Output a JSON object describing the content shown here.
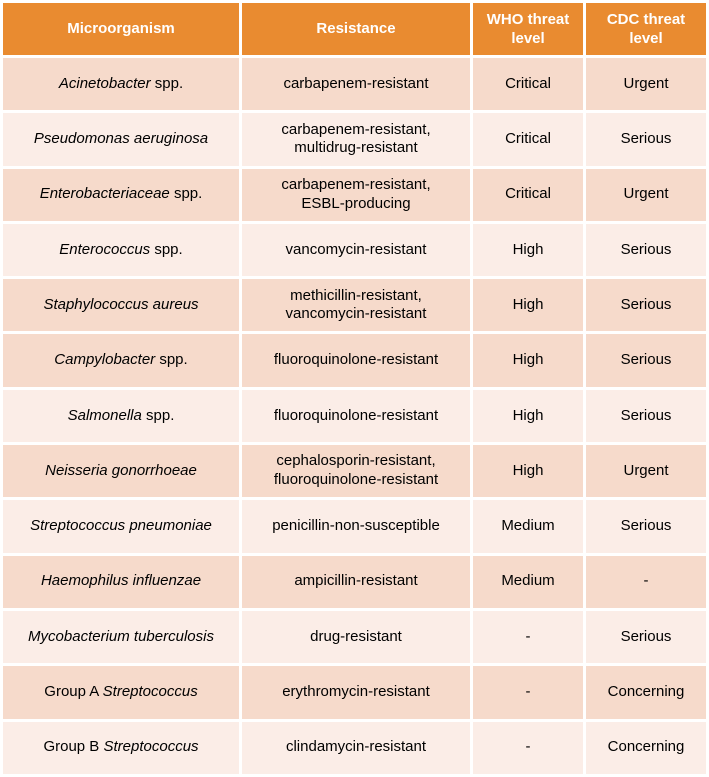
{
  "colors": {
    "header_bg": "#E98B30",
    "header_text": "#FFFFFF",
    "row_band_dark": "#F6DACB",
    "row_band_light": "#FBEDE7",
    "body_text": "#000000",
    "grid_white": "#FFFFFF"
  },
  "table": {
    "columns": [
      "Microorganism",
      "Resistance",
      "WHO threat level",
      "CDC threat level"
    ],
    "rows": [
      {
        "microorganism": [
          {
            "text": "Acinetobacter",
            "italic": true
          },
          {
            "text": " spp.",
            "italic": false
          }
        ],
        "resistance": "carbapenem-resistant",
        "who": "Critical",
        "cdc": "Urgent",
        "band": "dark"
      },
      {
        "microorganism": [
          {
            "text": "Pseudomonas aeruginosa",
            "italic": true
          }
        ],
        "resistance": "carbapenem-resistant,\nmultidrug-resistant",
        "who": "Critical",
        "cdc": "Serious",
        "band": "light"
      },
      {
        "microorganism": [
          {
            "text": "Enterobacteriaceae",
            "italic": true
          },
          {
            "text": " spp.",
            "italic": false
          }
        ],
        "resistance": "carbapenem-resistant,\nESBL-producing",
        "who": "Critical",
        "cdc": "Urgent",
        "band": "dark"
      },
      {
        "microorganism": [
          {
            "text": "Enterococcus",
            "italic": true
          },
          {
            "text": " spp.",
            "italic": false
          }
        ],
        "resistance": "vancomycin-resistant",
        "who": "High",
        "cdc": "Serious",
        "band": "light"
      },
      {
        "microorganism": [
          {
            "text": "Staphylococcus aureus",
            "italic": true
          }
        ],
        "resistance": "methicillin-resistant,\nvancomycin-resistant",
        "who": "High",
        "cdc": "Serious",
        "band": "dark"
      },
      {
        "microorganism": [
          {
            "text": "Campylobacter",
            "italic": true
          },
          {
            "text": " spp.",
            "italic": false
          }
        ],
        "resistance": "fluoroquinolone-resistant",
        "who": "High",
        "cdc": "Serious",
        "band": "dark"
      },
      {
        "microorganism": [
          {
            "text": "Salmonella",
            "italic": true
          },
          {
            "text": " spp.",
            "italic": false
          }
        ],
        "resistance": "fluoroquinolone-resistant",
        "who": "High",
        "cdc": "Serious",
        "band": "light"
      },
      {
        "microorganism": [
          {
            "text": "Neisseria gonorrhoeae",
            "italic": true
          }
        ],
        "resistance": "cephalosporin-resistant,\nfluoroquinolone-resistant",
        "who": "High",
        "cdc": "Urgent",
        "band": "dark"
      },
      {
        "microorganism": [
          {
            "text": "Streptococcus pneumoniae",
            "italic": true
          }
        ],
        "resistance": "penicillin-non-susceptible",
        "who": "Medium",
        "cdc": "Serious",
        "band": "light"
      },
      {
        "microorganism": [
          {
            "text": "Haemophilus influenzae",
            "italic": true
          }
        ],
        "resistance": "ampicillin-resistant",
        "who": "Medium",
        "cdc": "-",
        "band": "dark"
      },
      {
        "microorganism": [
          {
            "text": "Mycobacterium tuberculosis",
            "italic": true
          }
        ],
        "resistance": "drug-resistant",
        "who": "-",
        "cdc": "Serious",
        "band": "light"
      },
      {
        "microorganism": [
          {
            "text": "Group A ",
            "italic": false
          },
          {
            "text": "Streptococcus",
            "italic": true
          }
        ],
        "resistance": "erythromycin-resistant",
        "who": "-",
        "cdc": "Concerning",
        "band": "dark"
      },
      {
        "microorganism": [
          {
            "text": "Group B ",
            "italic": false
          },
          {
            "text": "Streptococcus",
            "italic": true
          }
        ],
        "resistance": "clindamycin-resistant",
        "who": "-",
        "cdc": "Concerning",
        "band": "light"
      }
    ]
  },
  "chart_data": {
    "type": "table",
    "columns": [
      "Microorganism",
      "Resistance",
      "WHO threat level",
      "CDC threat level"
    ],
    "rows": [
      [
        "Acinetobacter spp.",
        "carbapenem-resistant",
        "Critical",
        "Urgent"
      ],
      [
        "Pseudomonas aeruginosa",
        "carbapenem-resistant, multidrug-resistant",
        "Critical",
        "Serious"
      ],
      [
        "Enterobacteriaceae spp.",
        "carbapenem-resistant, ESBL-producing",
        "Critical",
        "Urgent"
      ],
      [
        "Enterococcus spp.",
        "vancomycin-resistant",
        "High",
        "Serious"
      ],
      [
        "Staphylococcus aureus",
        "methicillin-resistant, vancomycin-resistant",
        "High",
        "Serious"
      ],
      [
        "Campylobacter spp.",
        "fluoroquinolone-resistant",
        "High",
        "Serious"
      ],
      [
        "Salmonella spp.",
        "fluoroquinolone-resistant",
        "High",
        "Serious"
      ],
      [
        "Neisseria gonorrhoeae",
        "cephalosporin-resistant, fluoroquinolone-resistant",
        "High",
        "Urgent"
      ],
      [
        "Streptococcus pneumoniae",
        "penicillin-non-susceptible",
        "Medium",
        "Serious"
      ],
      [
        "Haemophilus influenzae",
        "ampicillin-resistant",
        "Medium",
        "-"
      ],
      [
        "Mycobacterium tuberculosis",
        "drug-resistant",
        "-",
        "Serious"
      ],
      [
        "Group A Streptococcus",
        "erythromycin-resistant",
        "-",
        "Concerning"
      ],
      [
        "Group B Streptococcus",
        "clindamycin-resistant",
        "-",
        "Concerning"
      ]
    ]
  }
}
